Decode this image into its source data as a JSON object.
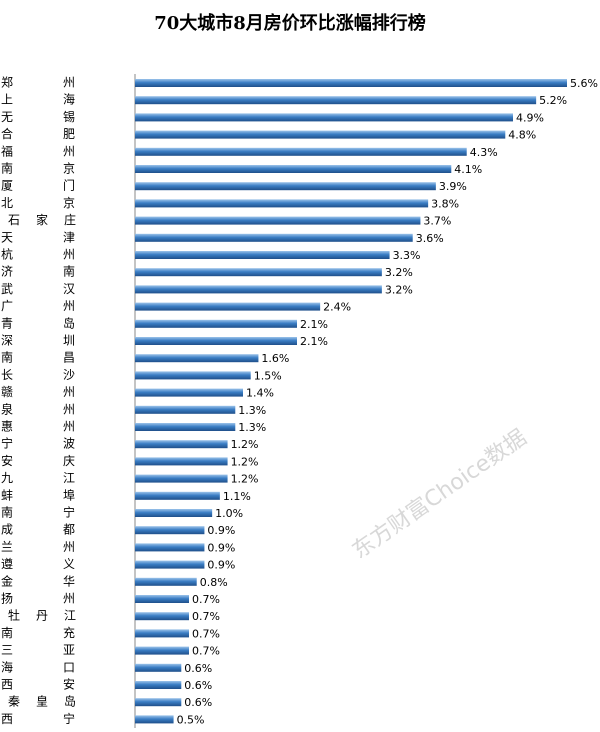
{
  "chart_data": {
    "type": "bar",
    "orientation": "horizontal",
    "title": "70大城市8月房价环比涨幅排行榜",
    "watermark": "东方财富Choice数据",
    "color": "#3a7dc4",
    "categories": [
      "郑州",
      "上海",
      "无锡",
      "合肥",
      "福州",
      "南京",
      "厦门",
      "北京",
      "石家庄",
      "天津",
      "杭州",
      "济南",
      "武汉",
      "广州",
      "青岛",
      "深圳",
      "南昌",
      "长沙",
      "赣州",
      "泉州",
      "惠州",
      "宁波",
      "安庆",
      "九江",
      "蚌埠",
      "南宁",
      "成都",
      "兰州",
      "遵义",
      "金华",
      "扬州",
      "牡丹江",
      "南充",
      "三亚",
      "海口",
      "西安",
      "秦皇岛",
      "西宁"
    ],
    "values": [
      5.6,
      5.2,
      4.9,
      4.8,
      4.3,
      4.1,
      3.9,
      3.8,
      3.7,
      3.6,
      3.3,
      3.2,
      3.2,
      2.4,
      2.1,
      2.1,
      1.6,
      1.5,
      1.4,
      1.3,
      1.3,
      1.2,
      1.2,
      1.2,
      1.1,
      1.0,
      0.9,
      0.9,
      0.9,
      0.8,
      0.7,
      0.7,
      0.7,
      0.7,
      0.6,
      0.6,
      0.6,
      0.5
    ],
    "value_labels": [
      "5.6%",
      "5.2%",
      "4.9%",
      "4.8%",
      "4.3%",
      "4.1%",
      "3.9%",
      "3.8%",
      "3.7%",
      "3.6%",
      "3.3%",
      "3.2%",
      "3.2%",
      "2.4%",
      "2.1%",
      "2.1%",
      "1.6%",
      "1.5%",
      "1.4%",
      "1.3%",
      "1.3%",
      "1.2%",
      "1.2%",
      "1.2%",
      "1.1%",
      "1.0%",
      "0.9%",
      "0.9%",
      "0.9%",
      "0.8%",
      "0.7%",
      "0.7%",
      "0.7%",
      "0.7%",
      "0.6%",
      "0.6%",
      "0.6%",
      "0.5%"
    ]
  }
}
